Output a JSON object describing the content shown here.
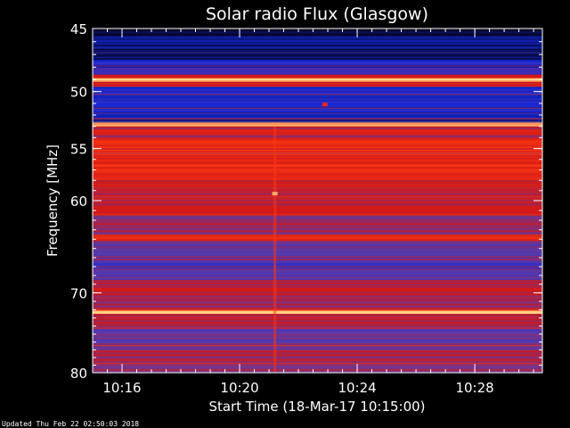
{
  "chart_data": {
    "type": "heatmap",
    "title": "Solar radio Flux (Glasgow)",
    "xlabel": "Start Time (18-Mar-17 10:15:00)",
    "ylabel": "Frequency [MHz]",
    "x_start_minutes": 15.0,
    "x_end_minutes": 30.3,
    "xticks": [
      {
        "minute": 16,
        "label": "10:16"
      },
      {
        "minute": 20,
        "label": "10:20"
      },
      {
        "minute": 24,
        "label": "10:24"
      },
      {
        "minute": 28,
        "label": "10:28"
      }
    ],
    "ylim": [
      45,
      80
    ],
    "y_scale": "log",
    "yticks": [
      {
        "value": 45,
        "label": "45"
      },
      {
        "value": 50,
        "label": "50"
      },
      {
        "value": 55,
        "label": "55"
      },
      {
        "value": 60,
        "label": "60"
      },
      {
        "value": 70,
        "label": "70"
      },
      {
        "value": 80,
        "label": "80"
      }
    ],
    "colormap": [
      "#050525",
      "#1428d8",
      "#5a3aa8",
      "#d01818",
      "#ff3a12",
      "#ffd080"
    ],
    "bands": [
      {
        "from": 45.0,
        "to": 45.6,
        "level": 0.0
      },
      {
        "from": 45.6,
        "to": 47.5,
        "level": 0.1
      },
      {
        "from": 47.5,
        "to": 48.6,
        "level": 0.22
      },
      {
        "from": 48.6,
        "to": 48.9,
        "level": 0.6
      },
      {
        "from": 48.9,
        "to": 49.2,
        "level": 0.95
      },
      {
        "from": 49.2,
        "to": 49.6,
        "level": 0.62
      },
      {
        "from": 49.6,
        "to": 51.5,
        "level": 0.24
      },
      {
        "from": 51.5,
        "to": 52.6,
        "level": 0.16
      },
      {
        "from": 52.6,
        "to": 53.0,
        "level": 0.92
      },
      {
        "from": 53.0,
        "to": 54.0,
        "level": 0.58
      },
      {
        "from": 54.0,
        "to": 58.0,
        "level": 0.7
      },
      {
        "from": 58.0,
        "to": 61.5,
        "level": 0.6
      },
      {
        "from": 61.5,
        "to": 63.5,
        "level": 0.5
      },
      {
        "from": 63.5,
        "to": 64.2,
        "level": 0.72
      },
      {
        "from": 64.2,
        "to": 66.0,
        "level": 0.42
      },
      {
        "from": 66.0,
        "to": 68.5,
        "level": 0.34
      },
      {
        "from": 68.5,
        "to": 70.5,
        "level": 0.56
      },
      {
        "from": 70.5,
        "to": 72.0,
        "level": 0.5
      },
      {
        "from": 72.0,
        "to": 72.5,
        "level": 0.95
      },
      {
        "from": 72.5,
        "to": 74.0,
        "level": 0.58
      },
      {
        "from": 74.0,
        "to": 77.0,
        "level": 0.42
      },
      {
        "from": 77.0,
        "to": 80.0,
        "level": 0.5
      }
    ],
    "spikes": [
      {
        "minute": 22.9,
        "freq": 51.1,
        "level": 0.7
      },
      {
        "minute": 21.2,
        "freq": 59.3,
        "level": 0.95
      }
    ],
    "vertical_features": [
      {
        "minute": 21.2,
        "from": 53.0,
        "to": 80.0,
        "level": 0.78
      }
    ],
    "grid": false,
    "legend": "none"
  },
  "footer": {
    "updated": "Updated Thu Feb 22 02:50:03 2018"
  }
}
